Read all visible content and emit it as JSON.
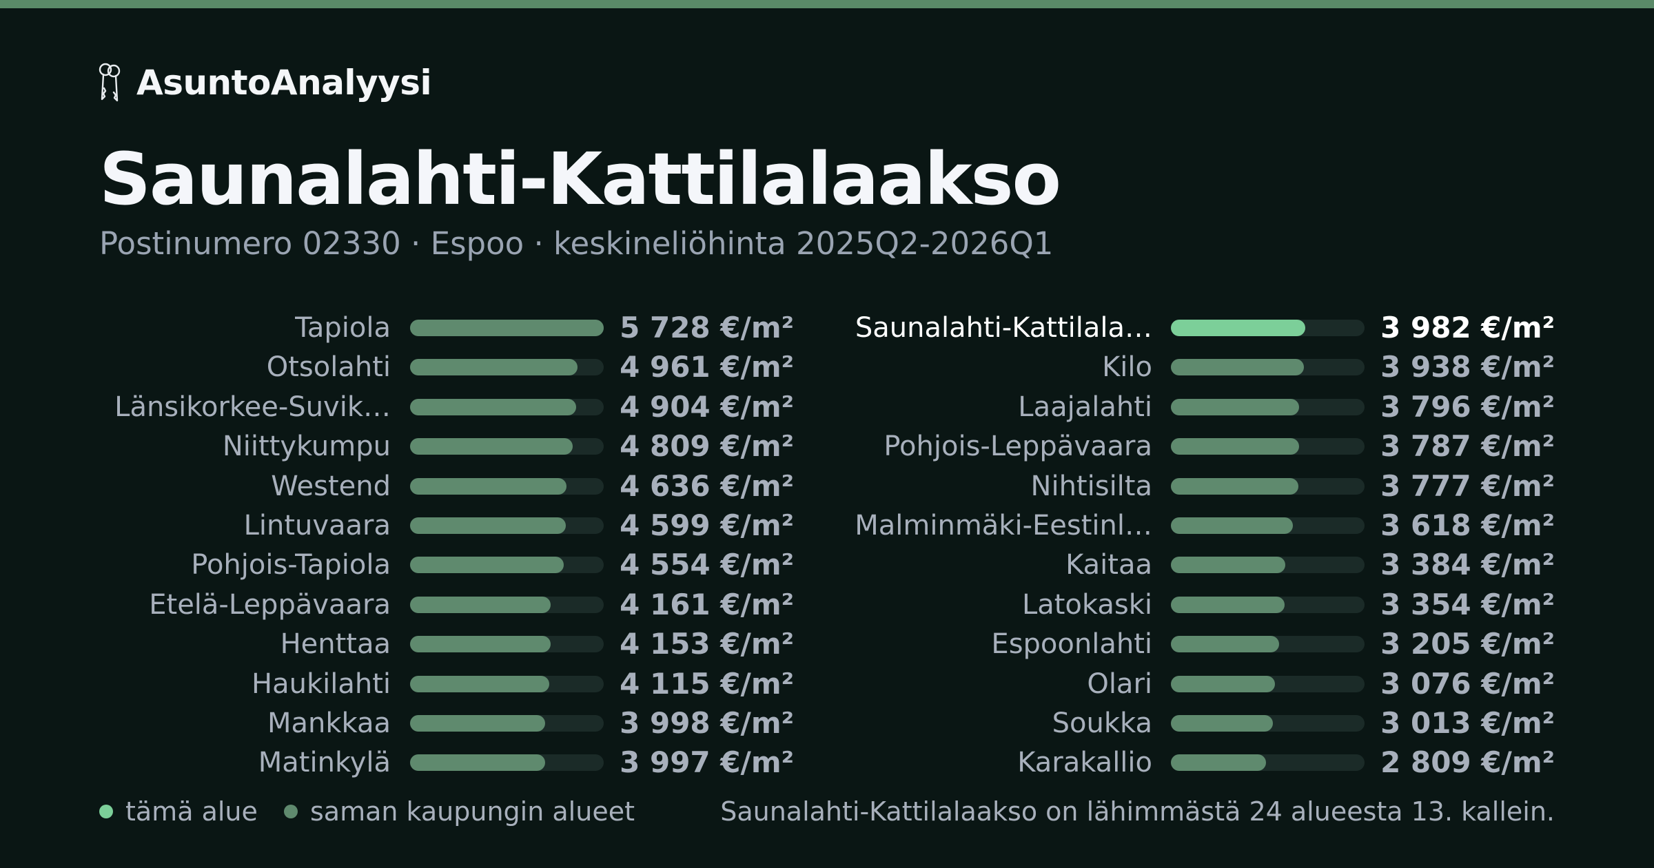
{
  "brand": {
    "name": "AsuntoAnalyysi",
    "icon": "keys-icon"
  },
  "title": "Saunalahti-Kattilalaakso",
  "subtitle": "Postinumero 02330 · Espoo · keskineliöhinta 2025Q2-2026Q1",
  "colors": {
    "highlight": "#7ccf99",
    "other": "#5f8a6e",
    "track": "#1b2b28",
    "background": "#0a1614",
    "top_bar": "#5a8a68"
  },
  "chart_data": {
    "type": "bar",
    "orientation": "horizontal",
    "unit": "€/m²",
    "xlim": [
      0,
      5728
    ],
    "highlight": "Saunalahti-Kattilalaakso",
    "columns": [
      [
        {
          "label": "Tapiola",
          "value": 5728,
          "display": "5 728 €/m²"
        },
        {
          "label": "Otsolahti",
          "value": 4961,
          "display": "4 961 €/m²"
        },
        {
          "label": "Länsikorkee-Suvik…",
          "value": 4904,
          "display": "4 904 €/m²"
        },
        {
          "label": "Niittykumpu",
          "value": 4809,
          "display": "4 809 €/m²"
        },
        {
          "label": "Westend",
          "value": 4636,
          "display": "4 636 €/m²"
        },
        {
          "label": "Lintuvaara",
          "value": 4599,
          "display": "4 599 €/m²"
        },
        {
          "label": "Pohjois-Tapiola",
          "value": 4554,
          "display": "4 554 €/m²"
        },
        {
          "label": "Etelä-Leppävaara",
          "value": 4161,
          "display": "4 161 €/m²"
        },
        {
          "label": "Henttaa",
          "value": 4153,
          "display": "4 153 €/m²"
        },
        {
          "label": "Haukilahti",
          "value": 4115,
          "display": "4 115 €/m²"
        },
        {
          "label": "Mankkaa",
          "value": 3998,
          "display": "3 998 €/m²"
        },
        {
          "label": "Matinkylä",
          "value": 3997,
          "display": "3 997 €/m²"
        }
      ],
      [
        {
          "label": "Saunalahti-Kattilala…",
          "value": 3982,
          "display": "3 982 €/m²",
          "highlight": true
        },
        {
          "label": "Kilo",
          "value": 3938,
          "display": "3 938 €/m²"
        },
        {
          "label": "Laajalahti",
          "value": 3796,
          "display": "3 796 €/m²"
        },
        {
          "label": "Pohjois-Leppävaara",
          "value": 3787,
          "display": "3 787 €/m²"
        },
        {
          "label": "Nihtisilta",
          "value": 3777,
          "display": "3 777 €/m²"
        },
        {
          "label": "Malminmäki-Eestinl…",
          "value": 3618,
          "display": "3 618 €/m²"
        },
        {
          "label": "Kaitaa",
          "value": 3384,
          "display": "3 384 €/m²"
        },
        {
          "label": "Latokaski",
          "value": 3354,
          "display": "3 354 €/m²"
        },
        {
          "label": "Espoonlahti",
          "value": 3205,
          "display": "3 205 €/m²"
        },
        {
          "label": "Olari",
          "value": 3076,
          "display": "3 076 €/m²"
        },
        {
          "label": "Soukka",
          "value": 3013,
          "display": "3 013 €/m²"
        },
        {
          "label": "Karakallio",
          "value": 2809,
          "display": "2 809 €/m²"
        }
      ]
    ]
  },
  "legend": [
    {
      "label": "tämä alue",
      "color": "#7ccf99"
    },
    {
      "label": "saman kaupungin alueet",
      "color": "#5f8a6e"
    }
  ],
  "footer": "Saunalahti-Kattilalaakso on lähimmästä 24 alueesta 13. kallein."
}
